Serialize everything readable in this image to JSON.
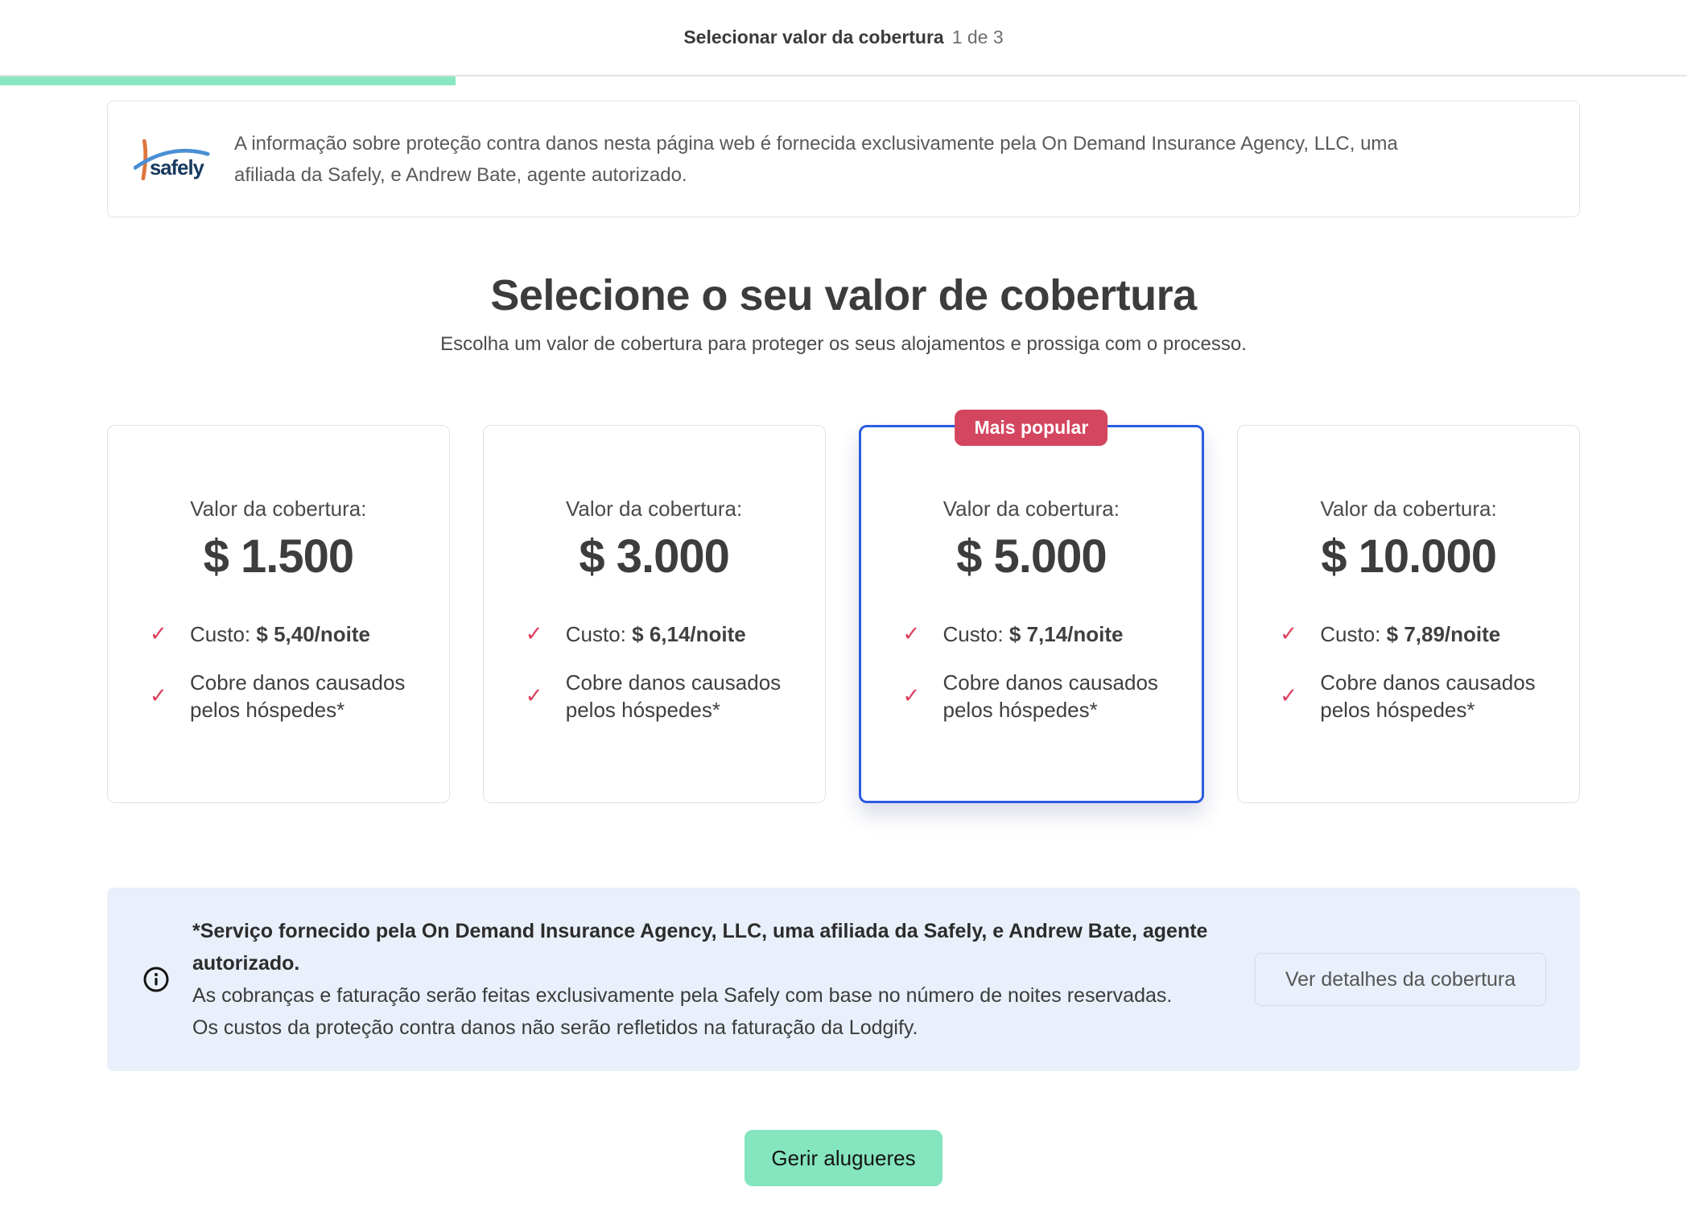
{
  "header": {
    "title": "Selecionar valor da cobertura",
    "step": "1 de 3",
    "progress_percent": 27
  },
  "disclaimer": {
    "logo_text": "safely",
    "text_line1": "A informação sobre proteção contra danos nesta página web é fornecida exclusivamente pela On Demand Insurance Agency, LLC, uma",
    "text_line2": "afiliada da Safely, e Andrew Bate, agente autorizado."
  },
  "hero": {
    "title": "Selecione o seu valor de cobertura",
    "subtitle": "Escolha um valor de cobertura para proteger os seus alojamentos e prossiga com o processo."
  },
  "plans": {
    "value_label": "Valor da cobertura:",
    "cost_label": "Custo:",
    "feature_text": "Cobre danos causados pelos hóspedes*",
    "popular_badge": "Mais popular",
    "check_glyph": "✓",
    "cards": [
      {
        "value": "$ 1.500",
        "cost": "$ 5,40/noite",
        "selected": false,
        "popular": false
      },
      {
        "value": "$ 3.000",
        "cost": "$ 6,14/noite",
        "selected": false,
        "popular": false
      },
      {
        "value": "$ 5.000",
        "cost": "$ 7,14/noite",
        "selected": true,
        "popular": true
      },
      {
        "value": "$ 10.000",
        "cost": "$ 7,89/noite",
        "selected": false,
        "popular": false
      }
    ]
  },
  "info_box": {
    "bold_line1": "*Serviço fornecido pela On Demand Insurance Agency, LLC, uma afiliada da Safely, e Andrew Bate, agente",
    "bold_line2": "autorizado.",
    "text_line1": "As cobranças e faturação serão feitas exclusivamente pela Safely com base no número de noites reservadas.",
    "text_line2": "Os custos da proteção contra danos não serão refletidos na faturação da Lodgify.",
    "details_button": "Ver detalhes da cobertura"
  },
  "footer": {
    "manage_button": "Gerir alugueres"
  },
  "colors": {
    "progress_green": "#88e7c2",
    "cta_green": "#84e5bf",
    "badge_red": "#d4465f",
    "check_red": "#dc3e5d",
    "selected_blue": "#2b5ce1",
    "info_box_blue": "#e9f0fb"
  }
}
